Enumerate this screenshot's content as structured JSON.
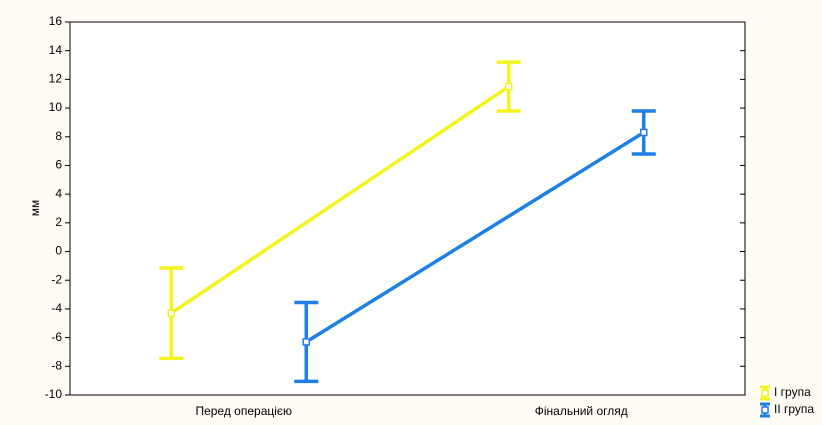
{
  "chart_data": {
    "type": "line",
    "ylabel": "мм",
    "categories": [
      "Перед операцією",
      "Фінальний огляд"
    ],
    "series": [
      {
        "name": "I група",
        "color": "#f4f41c",
        "values": [
          -4.3,
          11.5
        ],
        "errors": [
          3.15,
          1.7
        ]
      },
      {
        "name": "II група",
        "color": "#1e7fe6",
        "values": [
          -6.3,
          8.3
        ],
        "errors": [
          2.75,
          1.5
        ]
      }
    ],
    "ylim": [
      -10,
      16
    ],
    "yticks": [
      -10,
      -8,
      -6,
      -4,
      -2,
      0,
      2,
      4,
      6,
      8,
      10,
      12,
      14,
      16
    ],
    "legend": "bottom-right"
  }
}
